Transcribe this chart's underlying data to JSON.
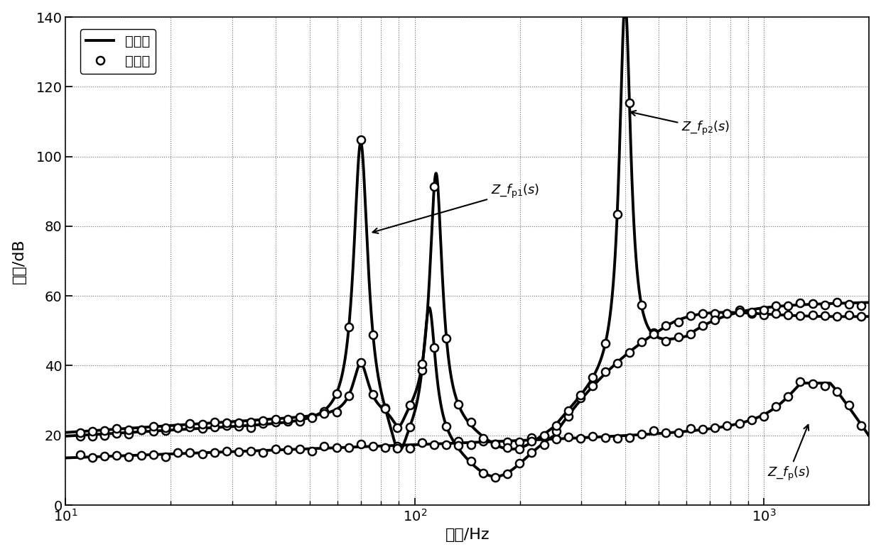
{
  "xlabel": "频率/Hz",
  "ylabel": "幅値/dB",
  "xlim": [
    10,
    2000
  ],
  "ylim": [
    0,
    140
  ],
  "yticks": [
    0,
    20,
    40,
    60,
    80,
    100,
    120,
    140
  ],
  "legend_theory": "理论値",
  "legend_sim": "仿真値",
  "line_color": "#000000",
  "bg_color": "#ffffff",
  "grid_color": "#555555",
  "f_peak1": 70.0,
  "f_peak2_fp1": 110.0,
  "f_peak2_fp2": 115.0,
  "f_peak_fp2_big": 400.0,
  "f_anti": 95.0,
  "sim_n_points": 65
}
